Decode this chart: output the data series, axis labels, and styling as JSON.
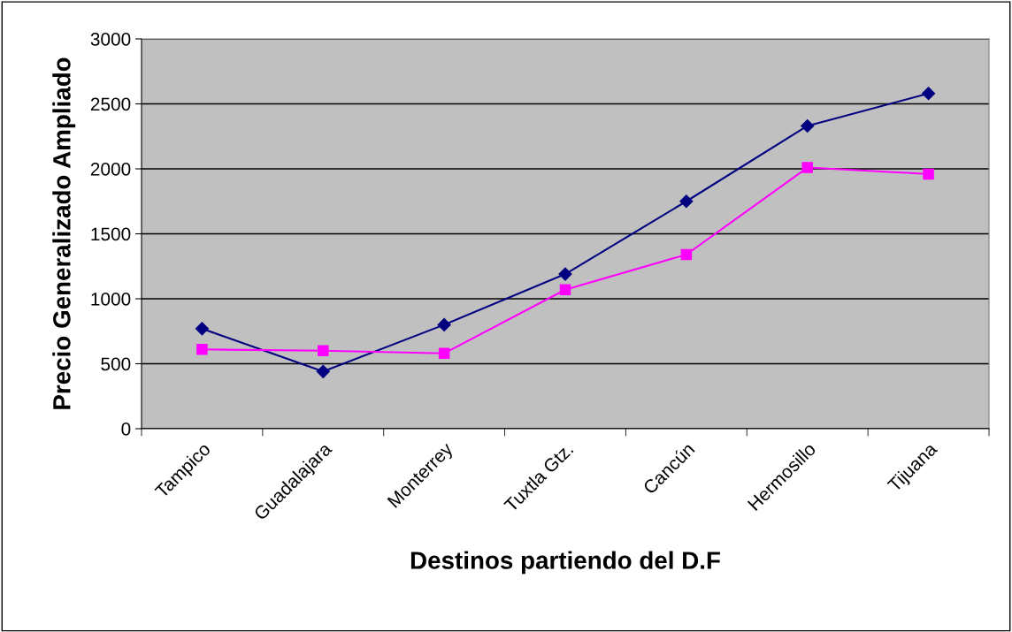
{
  "chart_data": {
    "type": "line",
    "xlabel": "Destinos partiendo del D.F",
    "ylabel": "Precio Generalizado Ampliado",
    "categories": [
      "Tampico",
      "Guadalajara",
      "Monterrey",
      "Tuxtla Gtz.",
      "Cancún",
      "Hermosillo",
      "Tijuana"
    ],
    "series": [
      {
        "color": "#000080",
        "marker": "diamond",
        "values": [
          770,
          440,
          800,
          1190,
          1750,
          2330,
          2580
        ]
      },
      {
        "color": "#ff00ff",
        "marker": "square",
        "values": [
          610,
          600,
          580,
          1070,
          1340,
          2010,
          1960
        ]
      }
    ],
    "ylim": [
      0,
      3000
    ],
    "yticks": [
      0,
      500,
      1000,
      1500,
      2000,
      2500,
      3000
    ],
    "grid": "y",
    "line_style": "solid"
  }
}
